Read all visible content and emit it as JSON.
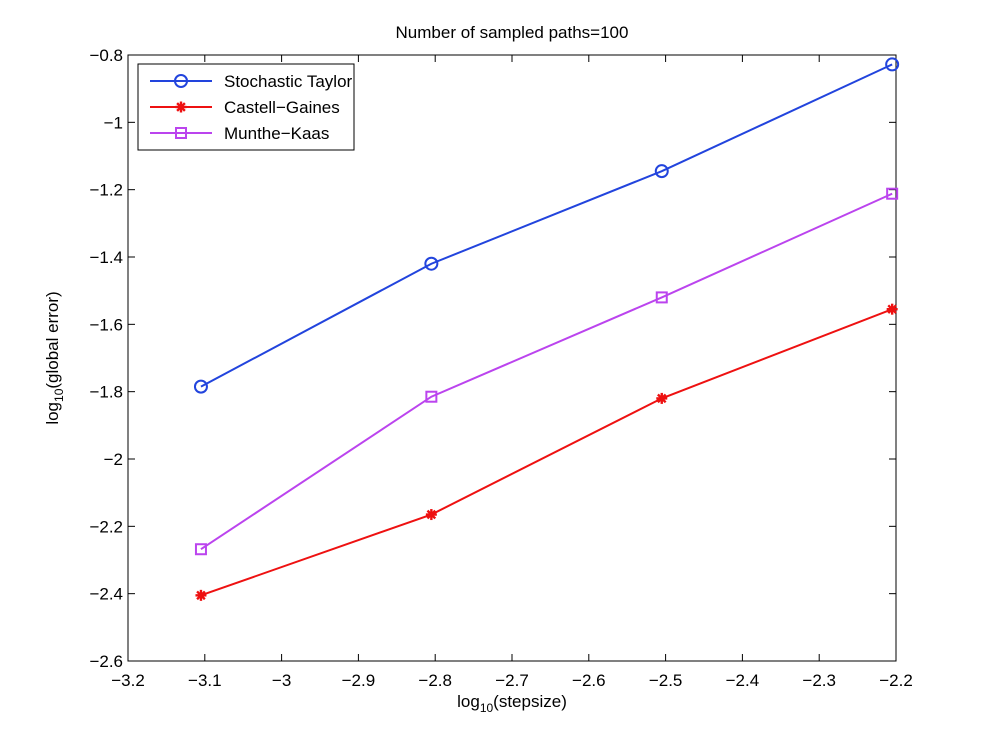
{
  "chart_data": {
    "type": "line",
    "title": "Number of sampled paths=100",
    "xlabel": {
      "prefix": "log",
      "sub": "10",
      "suffix": "(stepsize)"
    },
    "ylabel": {
      "prefix": "log",
      "sub": "10",
      "suffix": "(global error)"
    },
    "xlim": [
      -3.2,
      -2.2
    ],
    "ylim": [
      -2.6,
      -0.8
    ],
    "xticks": [
      -3.2,
      -3.1,
      -3.0,
      -2.9,
      -2.8,
      -2.7,
      -2.6,
      -2.5,
      -2.4,
      -2.3,
      -2.2
    ],
    "xtick_labels": [
      "−3.2",
      "−3.1",
      "−3",
      "−2.9",
      "−2.8",
      "−2.7",
      "−2.6",
      "−2.5",
      "−2.4",
      "−2.3",
      "−2.2"
    ],
    "yticks": [
      -2.6,
      -2.4,
      -2.2,
      -2.0,
      -1.8,
      -1.6,
      -1.4,
      -1.2,
      -1.0,
      -0.8
    ],
    "ytick_labels": [
      "−2.6",
      "−2.4",
      "−2.2",
      "−2",
      "−1.8",
      "−1.6",
      "−1.4",
      "−1.2",
      "−1",
      "−0.8"
    ],
    "grid": false,
    "legend_position": "top-left",
    "x": [
      -3.105,
      -2.805,
      -2.505,
      -2.205
    ],
    "series": [
      {
        "name": "Stochastic Taylor",
        "values": [
          -1.785,
          -1.42,
          -1.145,
          -0.828
        ],
        "color": "#2244dd",
        "marker": "circle"
      },
      {
        "name": "Castell−Gaines",
        "values": [
          -2.405,
          -2.165,
          -1.82,
          -1.555
        ],
        "color": "#ee1111",
        "marker": "asterisk"
      },
      {
        "name": "Munthe−Kaas",
        "values": [
          -2.268,
          -1.815,
          -1.52,
          -1.212
        ],
        "color": "#bb44ee",
        "marker": "square"
      }
    ]
  }
}
